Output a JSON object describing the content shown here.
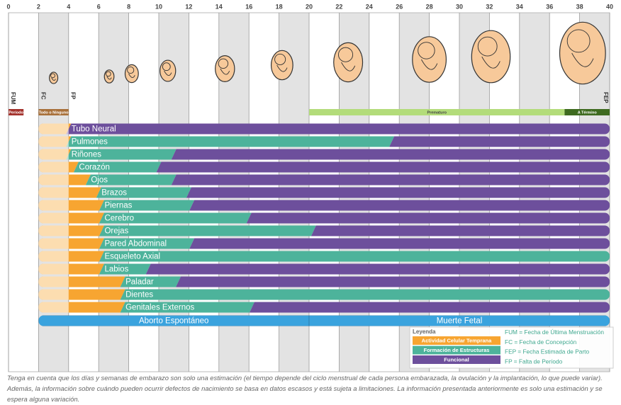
{
  "chart_data": {
    "type": "timeline",
    "xlim": [
      0,
      40
    ],
    "xticks": [
      0,
      2,
      4,
      6,
      8,
      10,
      12,
      14,
      16,
      18,
      20,
      22,
      24,
      26,
      28,
      30,
      32,
      34,
      36,
      38,
      40
    ],
    "markers": [
      {
        "label": "FUM",
        "week": 0
      },
      {
        "label": "FC",
        "week": 2
      },
      {
        "label": "FP",
        "week": 4
      },
      {
        "label": "FEP",
        "week": 40
      }
    ],
    "periods": [
      {
        "label": "Período",
        "start": 0,
        "end": 1,
        "color": "#a3312b"
      },
      {
        "label": "Todo o Ninguno",
        "start": 2,
        "end": 4,
        "color": "#a8703a"
      },
      {
        "label": "Prematuro",
        "start": 20,
        "end": 37,
        "color": "#b3dc7a"
      },
      {
        "label": "A Término",
        "start": 37,
        "end": 40,
        "color": "#3e6a1f"
      }
    ],
    "phases": [
      {
        "name": "Actividad Celular Temprana",
        "color": "#f7a531"
      },
      {
        "name": "Formación de Estructuras",
        "color": "#4db39b"
      },
      {
        "name": "Funcional",
        "color": "#6d4f9c"
      }
    ],
    "rows": [
      {
        "label": "Tubo Neural",
        "segments": [
          {
            "phase": 0,
            "start": 2,
            "end": 4
          },
          {
            "phase": 2,
            "start": 4,
            "end": 40
          }
        ]
      },
      {
        "label": "Pulmones",
        "segments": [
          {
            "phase": 0,
            "start": 2,
            "end": 4
          },
          {
            "phase": 1,
            "start": 4,
            "end": 25.5
          },
          {
            "phase": 2,
            "start": 25.5,
            "end": 40
          }
        ]
      },
      {
        "label": "Riñones",
        "segments": [
          {
            "phase": 0,
            "start": 2,
            "end": 4
          },
          {
            "phase": 1,
            "start": 4,
            "end": 11
          },
          {
            "phase": 2,
            "start": 11,
            "end": 40
          }
        ]
      },
      {
        "label": "Corazón",
        "segments": [
          {
            "phase": 0,
            "start": 2,
            "end": 4.5
          },
          {
            "phase": 1,
            "start": 4.5,
            "end": 10
          },
          {
            "phase": 2,
            "start": 10,
            "end": 40
          }
        ]
      },
      {
        "label": "Ojos",
        "segments": [
          {
            "phase": 0,
            "start": 2,
            "end": 5.3
          },
          {
            "phase": 1,
            "start": 5.3,
            "end": 11
          },
          {
            "phase": 2,
            "start": 11,
            "end": 40
          }
        ]
      },
      {
        "label": "Brazos",
        "segments": [
          {
            "phase": 0,
            "start": 2,
            "end": 6
          },
          {
            "phase": 1,
            "start": 6,
            "end": 12
          },
          {
            "phase": 2,
            "start": 12,
            "end": 40
          }
        ]
      },
      {
        "label": "Piernas",
        "segments": [
          {
            "phase": 0,
            "start": 2,
            "end": 6.2
          },
          {
            "phase": 1,
            "start": 6.2,
            "end": 12.2
          },
          {
            "phase": 2,
            "start": 12.2,
            "end": 40
          }
        ]
      },
      {
        "label": "Cerebro",
        "segments": [
          {
            "phase": 0,
            "start": 2,
            "end": 6.2
          },
          {
            "phase": 1,
            "start": 6.2,
            "end": 16
          },
          {
            "phase": 2,
            "start": 16,
            "end": 40
          }
        ]
      },
      {
        "label": "Orejas",
        "segments": [
          {
            "phase": 0,
            "start": 2,
            "end": 6.2
          },
          {
            "phase": 1,
            "start": 6.2,
            "end": 20.3
          },
          {
            "phase": 2,
            "start": 20.3,
            "end": 40
          }
        ]
      },
      {
        "label": "Pared Abdominal",
        "segments": [
          {
            "phase": 0,
            "start": 2,
            "end": 6.2
          },
          {
            "phase": 1,
            "start": 6.2,
            "end": 12.2
          },
          {
            "phase": 2,
            "start": 12.2,
            "end": 40
          }
        ]
      },
      {
        "label": "Esqueleto Axial",
        "segments": [
          {
            "phase": 0,
            "start": 2,
            "end": 6.2
          },
          {
            "phase": 1,
            "start": 6.2,
            "end": 40
          }
        ]
      },
      {
        "label": "Labios",
        "segments": [
          {
            "phase": 0,
            "start": 2,
            "end": 6.2
          },
          {
            "phase": 1,
            "start": 6.2,
            "end": 9.3
          },
          {
            "phase": 2,
            "start": 9.3,
            "end": 40
          }
        ]
      },
      {
        "label": "Paladar",
        "segments": [
          {
            "phase": 0,
            "start": 2,
            "end": 7.6
          },
          {
            "phase": 1,
            "start": 7.6,
            "end": 11.3
          },
          {
            "phase": 2,
            "start": 11.3,
            "end": 40
          }
        ]
      },
      {
        "label": "Dientes",
        "segments": [
          {
            "phase": 0,
            "start": 2,
            "end": 7.6
          },
          {
            "phase": 1,
            "start": 7.6,
            "end": 40
          }
        ]
      },
      {
        "label": "Genitales Externos",
        "segments": [
          {
            "phase": 0,
            "start": 2,
            "end": 7.6
          },
          {
            "phase": 1,
            "start": 7.6,
            "end": 16.2
          },
          {
            "phase": 2,
            "start": 16.2,
            "end": 40
          }
        ]
      }
    ],
    "loss": {
      "color": "#3aa3de",
      "segments": [
        {
          "label": "Aborto Espontáneo",
          "start": 2,
          "end": 20
        },
        {
          "label": "Muerte Fetal",
          "start": 20,
          "end": 40
        }
      ]
    },
    "legend": {
      "title": "Leyenda",
      "notes": [
        "FUM = Fecha de Última Menstruación",
        "FC = Fecha de Concepción",
        "FEP = Fecha Estimada de Parto",
        "FP = Falta de Período"
      ]
    },
    "footnote": "Tenga en cuenta que los días y semanas de embarazo son solo una estimación (el tiempo depende del ciclo menstrual de cada persona embarazada, la ovulación y la implantación, lo que puede variar). Además, la información sobre cuándo pueden ocurrir defectos de nacimiento se basa en datos escasos y está sujeta a limitaciones. La información presentada anteriormente es solo una estimación y se espera alguna variación."
  }
}
